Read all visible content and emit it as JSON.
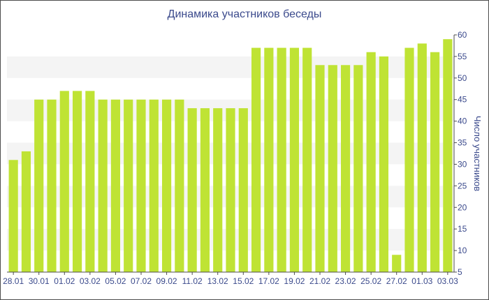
{
  "chart_data": {
    "type": "bar",
    "title": "Динамика участников беседы",
    "xlabel": "",
    "ylabel": "Число участников",
    "ylim": [
      5,
      60
    ],
    "yticks": [
      5,
      10,
      15,
      20,
      25,
      30,
      35,
      40,
      45,
      50,
      55,
      60
    ],
    "y_axis_side": "right",
    "grid": "alternating horizontal bands",
    "bar_color": "#bfe334",
    "categories": [
      "28.01",
      "29.01",
      "30.01",
      "31.01",
      "01.02",
      "02.02",
      "03.02",
      "04.02",
      "05.02",
      "06.02",
      "07.02",
      "08.02",
      "09.02",
      "10.02",
      "11.02",
      "12.02",
      "13.02",
      "14.02",
      "15.02",
      "16.02",
      "17.02",
      "18.02",
      "19.02",
      "20.02",
      "21.02",
      "22.02",
      "23.02",
      "24.02",
      "25.02",
      "26.02",
      "27.02",
      "28.02",
      "01.03",
      "02.03",
      "03.03"
    ],
    "xtick_labels": [
      "28.01",
      "30.01",
      "01.02",
      "03.02",
      "05.02",
      "07.02",
      "09.02",
      "11.02",
      "13.02",
      "15.02",
      "17.02",
      "19.02",
      "21.02",
      "23.02",
      "25.02",
      "27.02",
      "01.03",
      "03.03"
    ],
    "values": [
      31,
      33,
      45,
      45,
      47,
      47,
      47,
      45,
      45,
      45,
      45,
      45,
      45,
      45,
      43,
      43,
      43,
      43,
      43,
      57,
      57,
      57,
      57,
      57,
      53,
      53,
      53,
      53,
      56,
      55,
      9,
      57,
      58,
      56,
      59
    ]
  }
}
